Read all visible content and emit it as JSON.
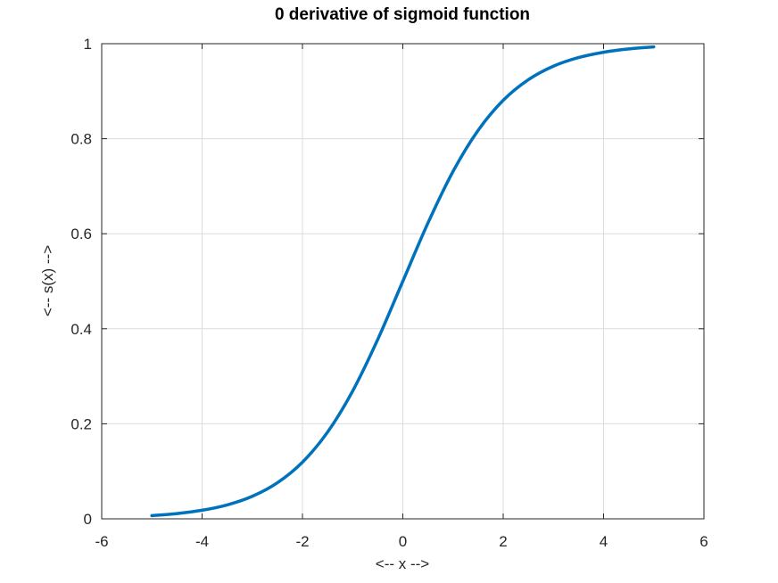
{
  "chart_data": {
    "type": "line",
    "title": "0 derivative of sigmoid function",
    "xlabel": "<-- x -->",
    "ylabel": "<-- s(x) -->",
    "xlim": [
      -6,
      6
    ],
    "ylim": [
      0,
      1
    ],
    "xticks": [
      -6,
      -4,
      -2,
      0,
      2,
      4,
      6
    ],
    "yticks": [
      0,
      0.2,
      0.4,
      0.6,
      0.8,
      1
    ],
    "xtick_labels": [
      "-6",
      "-4",
      "-2",
      "0",
      "2",
      "4",
      "6"
    ],
    "ytick_labels": [
      "0",
      "0.2",
      "0.4",
      "0.6",
      "0.8",
      "1"
    ],
    "grid": true,
    "line_color": "#0072BD",
    "series": [
      {
        "x": [
          -5,
          -4.5,
          -4,
          -3.5,
          -3,
          -2.5,
          -2,
          -1.5,
          -1,
          -0.5,
          0,
          0.5,
          1,
          1.5,
          2,
          2.5,
          3,
          3.5,
          4,
          4.5,
          5
        ],
        "y": [
          0.0067,
          0.011,
          0.018,
          0.0293,
          0.0474,
          0.0759,
          0.1192,
          0.1824,
          0.2689,
          0.3775,
          0.5,
          0.6225,
          0.7311,
          0.8176,
          0.8808,
          0.9241,
          0.9526,
          0.9707,
          0.982,
          0.989,
          0.9933
        ]
      }
    ]
  }
}
